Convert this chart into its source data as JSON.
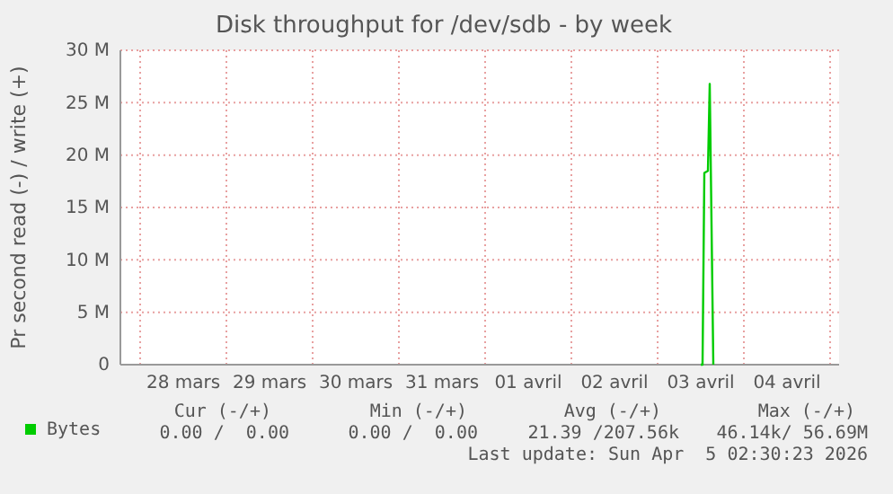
{
  "chart_data": {
    "type": "line",
    "title": "Disk throughput for /dev/sdb - by week",
    "ylabel": "Pr second read (-) / write (+)",
    "x": [
      "2026-04-03T12:00",
      "2026-04-03T12:30",
      "2026-04-03T13:00",
      "2026-04-03T14:00",
      "2026-04-03T14:30",
      "2026-04-03T15:30"
    ],
    "series": [
      {
        "name": "Bytes",
        "color": "#00cc00",
        "values": [
          0,
          0,
          18.3,
          18.5,
          26.8,
          0
        ]
      }
    ],
    "xlim": [
      "2026-03-27T18:30",
      "2026-04-05T02:30"
    ],
    "xticks": [
      {
        "value": "2026-03-28T00:00",
        "label": null
      },
      {
        "value": "2026-03-28T12:00",
        "label": "28 mars"
      },
      {
        "value": "2026-03-29T00:00",
        "label": null
      },
      {
        "value": "2026-03-29T12:00",
        "label": "29 mars"
      },
      {
        "value": "2026-03-30T00:00",
        "label": null
      },
      {
        "value": "2026-03-30T12:00",
        "label": "30 mars"
      },
      {
        "value": "2026-03-31T00:00",
        "label": null
      },
      {
        "value": "2026-03-31T12:00",
        "label": "31 mars"
      },
      {
        "value": "2026-04-01T00:00",
        "label": null
      },
      {
        "value": "2026-04-01T12:00",
        "label": "01 avril"
      },
      {
        "value": "2026-04-02T00:00",
        "label": null
      },
      {
        "value": "2026-04-02T12:00",
        "label": "02 avril"
      },
      {
        "value": "2026-04-03T00:00",
        "label": null
      },
      {
        "value": "2026-04-03T12:00",
        "label": "03 avril"
      },
      {
        "value": "2026-04-04T00:00",
        "label": null
      },
      {
        "value": "2026-04-04T12:00",
        "label": "04 avril"
      },
      {
        "value": "2026-04-05T00:00",
        "label": null
      }
    ],
    "ylim": [
      0,
      30
    ],
    "yticks": [
      0,
      {
        "value": 5,
        "label": "5 M"
      },
      {
        "value": 10,
        "label": "10 M"
      },
      {
        "value": 15,
        "label": "15 M"
      },
      {
        "value": 20,
        "label": "20 M"
      },
      {
        "value": 25,
        "label": "25 M"
      },
      {
        "value": 30,
        "label": "30 M"
      }
    ],
    "grid": true,
    "legend": "bottom",
    "marker": "none",
    "line_style": "solid",
    "annotations": [
      "Cur (-/+)",
      "Min (-/+)",
      "Avg (-/+)",
      "Max (-/+)",
      "0.00 /  0.00",
      "0.00 /  0.00",
      "21.39 /207.56k",
      "46.14k/ 56.69M",
      "Last update: Sun Apr  5 02:30:23 2026"
    ]
  }
}
